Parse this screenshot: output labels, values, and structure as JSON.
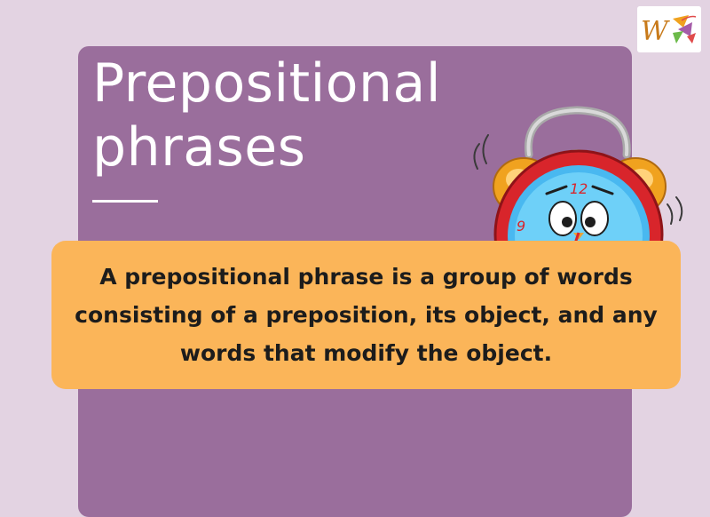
{
  "slide": {
    "title": "Prepositional phrases",
    "definition": "A prepositional phrase is a group of words consisting of a preposition, its object, and any words that modify the object."
  },
  "clock": {
    "numerals": [
      "12",
      "9"
    ]
  },
  "logo": {
    "letter": "W"
  },
  "colors": {
    "page_background": "#e3d3e2",
    "card": "#9a6e9c",
    "definition_box": "#fbb559",
    "title_text": "#ffffff",
    "definition_text": "#1c1c1c"
  }
}
